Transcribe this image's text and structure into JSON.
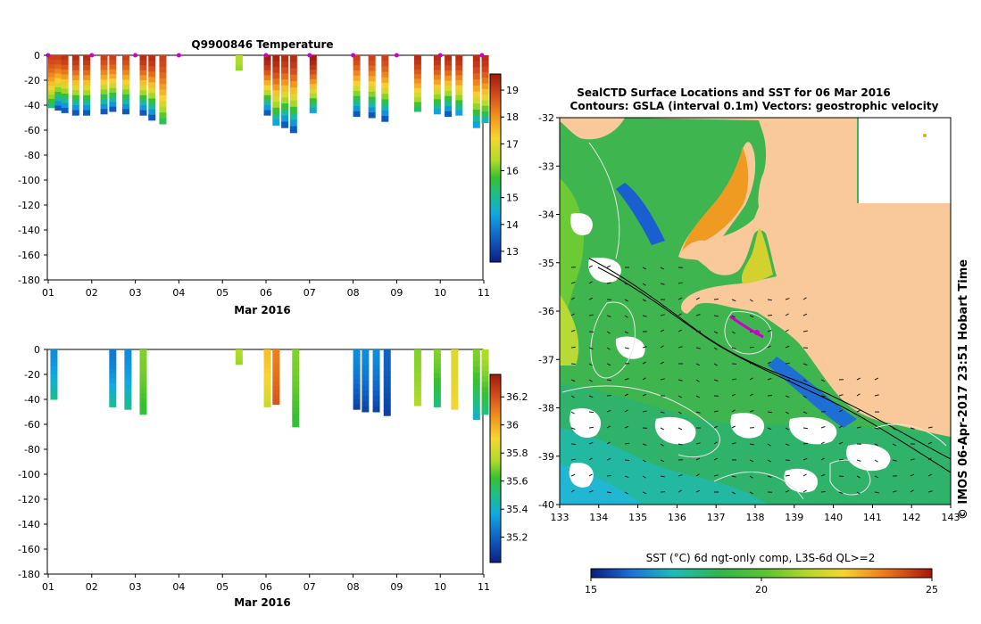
{
  "colors": {
    "land": "#f9c999",
    "contour": "#e8e8e8",
    "isobath": "#000000",
    "marker": "#cc00cc"
  },
  "chart_data": [
    {
      "type": "heatmap",
      "title": "Q9900846  Temperature",
      "xlabel": "Mar 2016",
      "x_ticks": [
        "01",
        "02",
        "03",
        "04",
        "05",
        "06",
        "07",
        "08",
        "09",
        "10",
        "11"
      ],
      "ylim": [
        -180,
        0
      ],
      "y_ticks": [
        "0",
        "-20",
        "-40",
        "-60",
        "-80",
        "-100",
        "-120",
        "-140",
        "-160",
        "-180"
      ],
      "colorbar_ticks": [
        "19",
        "18",
        "17",
        "16",
        "15",
        "14",
        "13"
      ],
      "colorbar_range": [
        12.6,
        19.6
      ],
      "profile_day_markers": [
        1,
        2,
        3,
        4,
        6,
        7,
        8,
        9,
        10,
        11
      ],
      "profiles": [
        {
          "day": 1.0,
          "depth": 42,
          "surface": 19,
          "bottom": 15
        },
        {
          "day": 1.15,
          "depth": 44,
          "surface": 19,
          "bottom": 13
        },
        {
          "day": 1.3,
          "depth": 46,
          "surface": 19.2,
          "bottom": 13
        },
        {
          "day": 1.55,
          "depth": 48,
          "surface": 19.3,
          "bottom": 13
        },
        {
          "day": 1.8,
          "depth": 48,
          "surface": 19.3,
          "bottom": 13
        },
        {
          "day": 2.2,
          "depth": 47,
          "surface": 19,
          "bottom": 13
        },
        {
          "day": 2.4,
          "depth": 45,
          "surface": 19,
          "bottom": 13
        },
        {
          "day": 2.7,
          "depth": 47,
          "surface": 19,
          "bottom": 13
        },
        {
          "day": 3.1,
          "depth": 48,
          "surface": 19.3,
          "bottom": 13
        },
        {
          "day": 3.3,
          "depth": 52,
          "surface": 19.3,
          "bottom": 13
        },
        {
          "day": 3.55,
          "depth": 55,
          "surface": 19,
          "bottom": 15.2
        },
        {
          "day": 5.3,
          "depth": 12,
          "surface": 16.5,
          "bottom": 16.2
        },
        {
          "day": 5.95,
          "depth": 48,
          "surface": 19.6,
          "bottom": 13
        },
        {
          "day": 6.15,
          "depth": 56,
          "surface": 19.5,
          "bottom": 14
        },
        {
          "day": 6.35,
          "depth": 58,
          "surface": 19.3,
          "bottom": 13
        },
        {
          "day": 6.55,
          "depth": 62,
          "surface": 19.3,
          "bottom": 13
        },
        {
          "day": 7.0,
          "depth": 46,
          "surface": 19.6,
          "bottom": 14
        },
        {
          "day": 8.0,
          "depth": 49,
          "surface": 19,
          "bottom": 13
        },
        {
          "day": 8.35,
          "depth": 50,
          "surface": 19,
          "bottom": 13
        },
        {
          "day": 8.65,
          "depth": 53,
          "surface": 19,
          "bottom": 13
        },
        {
          "day": 9.4,
          "depth": 45,
          "surface": 19.3,
          "bottom": 15
        },
        {
          "day": 9.85,
          "depth": 47,
          "surface": 19.3,
          "bottom": 14
        },
        {
          "day": 10.1,
          "depth": 49,
          "surface": 19.3,
          "bottom": 13
        },
        {
          "day": 10.35,
          "depth": 48,
          "surface": 19.3,
          "bottom": 14
        },
        {
          "day": 10.75,
          "depth": 58,
          "surface": 19.3,
          "bottom": 14
        },
        {
          "day": 10.95,
          "depth": 54,
          "surface": 19.3,
          "bottom": 14.5
        }
      ]
    },
    {
      "type": "heatmap",
      "title": "",
      "xlabel": "Mar 2016",
      "x_ticks": [
        "01",
        "02",
        "03",
        "04",
        "05",
        "06",
        "07",
        "08",
        "09",
        "10",
        "11"
      ],
      "ylim": [
        -180,
        0
      ],
      "y_ticks": [
        "0",
        "-20",
        "-40",
        "-60",
        "-80",
        "-100",
        "-120",
        "-140",
        "-160",
        "-180"
      ],
      "colorbar_ticks": [
        "36.2",
        "36",
        "35.8",
        "35.6",
        "35.4",
        "35.2"
      ],
      "colorbar_range": [
        35.02,
        36.36
      ],
      "profiles": [
        {
          "day": 1.05,
          "depth": 40,
          "surface": 35.3,
          "bottom": 35.5
        },
        {
          "day": 2.4,
          "depth": 46,
          "surface": 35.25,
          "bottom": 35.5
        },
        {
          "day": 2.75,
          "depth": 48,
          "surface": 35.3,
          "bottom": 35.5
        },
        {
          "day": 3.1,
          "depth": 52,
          "surface": 35.7,
          "bottom": 35.6
        },
        {
          "day": 5.3,
          "depth": 12,
          "surface": 35.75,
          "bottom": 35.72
        },
        {
          "day": 5.95,
          "depth": 46,
          "surface": 35.95,
          "bottom": 35.8
        },
        {
          "day": 6.15,
          "depth": 44,
          "surface": 36.1,
          "bottom": 36.2
        },
        {
          "day": 6.6,
          "depth": 62,
          "surface": 35.7,
          "bottom": 35.6
        },
        {
          "day": 8.0,
          "depth": 48,
          "surface": 35.3,
          "bottom": 35.1
        },
        {
          "day": 8.2,
          "depth": 50,
          "surface": 35.3,
          "bottom": 35.1
        },
        {
          "day": 8.45,
          "depth": 50,
          "surface": 35.3,
          "bottom": 35.1
        },
        {
          "day": 8.7,
          "depth": 53,
          "surface": 35.2,
          "bottom": 35.1
        },
        {
          "day": 9.4,
          "depth": 45,
          "surface": 35.7,
          "bottom": 35.75
        },
        {
          "day": 9.85,
          "depth": 46,
          "surface": 35.7,
          "bottom": 35.5
        },
        {
          "day": 10.25,
          "depth": 48,
          "surface": 35.85,
          "bottom": 35.9
        },
        {
          "day": 10.75,
          "depth": 56,
          "surface": 35.7,
          "bottom": 35.4
        },
        {
          "day": 10.95,
          "depth": 52,
          "surface": 35.75,
          "bottom": 35.5
        }
      ]
    },
    {
      "type": "heatmap",
      "title": "SealCTD Surface Locations and SST for 06 Mar 2016",
      "subtitle": "Contours: GSLA (interval 0.1m) Vectors: geostrophic velocity",
      "x_ticks": [
        "133",
        "134",
        "135",
        "136",
        "137",
        "138",
        "139",
        "140",
        "141",
        "142",
        "143"
      ],
      "y_ticks": [
        "-32",
        "-33",
        "-34",
        "-35",
        "-36",
        "-37",
        "-38",
        "-39",
        "-40"
      ],
      "xlim": [
        133,
        143
      ],
      "ylim": [
        -40,
        -32
      ],
      "colorbar_label": "SST (°C) 6d ngt-only comp, L3S-6d QL>=2",
      "colorbar_ticks": [
        "15",
        "20",
        "25"
      ],
      "colorbar_range": [
        15,
        25
      ],
      "credit": "© IMOS 06-Apr-2017 23:51 Hobart Time"
    }
  ]
}
